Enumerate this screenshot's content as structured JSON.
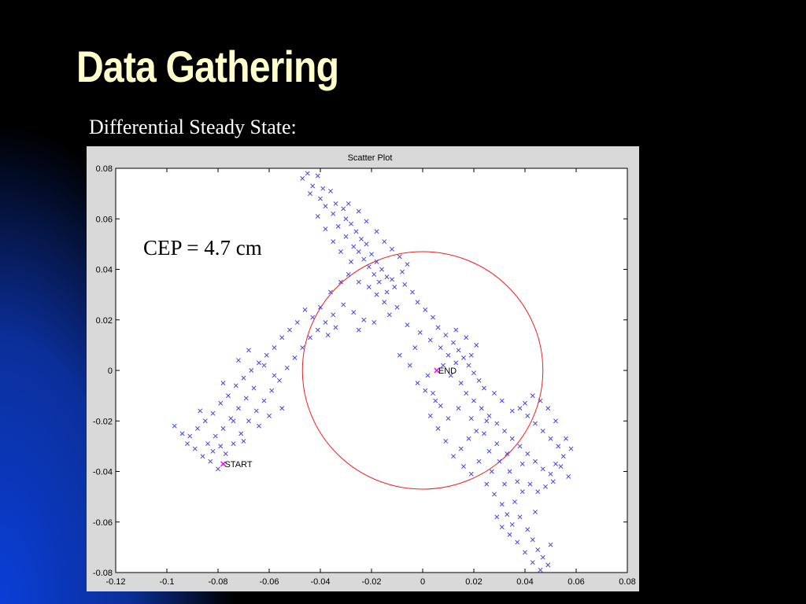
{
  "slide": {
    "title": "Data Gathering",
    "subtitle": "Differential Steady State:",
    "colors": {
      "title": "#ffffcc",
      "background_top": "#000000",
      "background_glow": "#0a3ed8"
    }
  },
  "chart_data": {
    "type": "scatter",
    "title": "Scatter Plot",
    "xlabel": "",
    "ylabel": "",
    "xlim": [
      -0.12,
      0.08
    ],
    "ylim": [
      -0.08,
      0.08
    ],
    "xticks": [
      "-0.12",
      "-0.1",
      "-0.08",
      "-0.06",
      "-0.04",
      "-0.02",
      "0",
      "0.02",
      "0.04",
      "0.06",
      "0.08"
    ],
    "yticks": [
      "0.08",
      "0.06",
      "0.04",
      "0.02",
      "0",
      "-0.02",
      "-0.04",
      "-0.06",
      "-0.08"
    ],
    "marker": "x",
    "marker_color": "#4646e8",
    "circle_color": "#ff1a1a",
    "cep_label": "CEP = 4.7 cm",
    "cep_circle": {
      "center": [
        0,
        0
      ],
      "radius": 0.047
    },
    "annotations": [
      {
        "text": "START",
        "x": -0.078,
        "y": -0.037,
        "marker_color": "#ff00ff"
      },
      {
        "text": "END",
        "x": 0.0055,
        "y": 0.0,
        "marker_color": "#ff00ff"
      }
    ],
    "series": [
      {
        "points": [
          [
            -0.045,
            0.078
          ],
          [
            -0.047,
            0.076
          ],
          [
            -0.043,
            0.073
          ],
          [
            -0.041,
            0.077
          ],
          [
            -0.039,
            0.072
          ],
          [
            -0.044,
            0.07
          ],
          [
            -0.04,
            0.068
          ],
          [
            -0.036,
            0.071
          ],
          [
            -0.034,
            0.066
          ],
          [
            -0.038,
            0.065
          ],
          [
            -0.035,
            0.062
          ],
          [
            -0.031,
            0.064
          ],
          [
            -0.03,
            0.06
          ],
          [
            -0.033,
            0.057
          ],
          [
            -0.028,
            0.058
          ],
          [
            -0.026,
            0.055
          ],
          [
            -0.03,
            0.053
          ],
          [
            -0.024,
            0.052
          ],
          [
            -0.027,
            0.049
          ],
          [
            -0.022,
            0.05
          ],
          [
            -0.025,
            0.047
          ],
          [
            -0.02,
            0.046
          ],
          [
            -0.023,
            0.044
          ],
          [
            -0.018,
            0.043
          ],
          [
            -0.021,
            0.041
          ],
          [
            -0.016,
            0.04
          ],
          [
            -0.019,
            0.038
          ],
          [
            -0.014,
            0.037
          ],
          [
            -0.017,
            0.035
          ],
          [
            -0.012,
            0.036
          ],
          [
            -0.028,
            0.043
          ],
          [
            -0.032,
            0.047
          ],
          [
            -0.035,
            0.051
          ],
          [
            -0.038,
            0.056
          ],
          [
            -0.041,
            0.061
          ],
          [
            -0.029,
            0.066
          ],
          [
            -0.025,
            0.063
          ],
          [
            -0.022,
            0.059
          ],
          [
            -0.018,
            0.055
          ],
          [
            -0.015,
            0.051
          ],
          [
            -0.012,
            0.048
          ],
          [
            -0.009,
            0.045
          ],
          [
            -0.006,
            0.042
          ],
          [
            -0.008,
            0.039
          ],
          [
            -0.011,
            0.033
          ],
          [
            -0.014,
            0.031
          ],
          [
            -0.007,
            0.034
          ],
          [
            -0.004,
            0.031
          ],
          [
            -0.002,
            0.027
          ],
          [
            0.001,
            0.024
          ],
          [
            0.004,
            0.021
          ],
          [
            0.006,
            0.017
          ],
          [
            0.009,
            0.014
          ],
          [
            0.012,
            0.011
          ],
          [
            0.014,
            0.008
          ],
          [
            0.016,
            0.005
          ],
          [
            0.018,
            0.002
          ],
          [
            0.02,
            -0.001
          ],
          [
            0.022,
            -0.004
          ],
          [
            0.024,
            -0.007
          ],
          [
            0.003,
            0.012
          ],
          [
            0.007,
            0.009
          ],
          [
            0.01,
            0.006
          ],
          [
            0.013,
            0.003
          ],
          [
            0.008,
            0.002
          ],
          [
            0.011,
            -0.002
          ],
          [
            0.015,
            -0.005
          ],
          [
            0.017,
            -0.009
          ],
          [
            0.02,
            -0.012
          ],
          [
            0.023,
            -0.015
          ],
          [
            0.026,
            -0.018
          ],
          [
            0.029,
            -0.021
          ],
          [
            0.032,
            -0.024
          ],
          [
            0.035,
            -0.027
          ],
          [
            0.038,
            -0.03
          ],
          [
            0.041,
            -0.033
          ],
          [
            0.044,
            -0.036
          ],
          [
            0.047,
            -0.039
          ],
          [
            0.05,
            -0.041
          ],
          [
            0.052,
            -0.037
          ],
          [
            0.055,
            -0.034
          ],
          [
            0.053,
            -0.03
          ],
          [
            0.05,
            -0.027
          ],
          [
            0.047,
            -0.024
          ],
          [
            0.044,
            -0.021
          ],
          [
            0.041,
            -0.018
          ],
          [
            0.038,
            -0.015
          ],
          [
            0.046,
            -0.012
          ],
          [
            0.049,
            -0.015
          ],
          [
            0.052,
            -0.02
          ],
          [
            0.043,
            -0.01
          ],
          [
            0.04,
            -0.013
          ],
          [
            0.035,
            -0.016
          ],
          [
            0.031,
            -0.012
          ],
          [
            0.028,
            -0.009
          ],
          [
            0.025,
            -0.02
          ],
          [
            0.021,
            -0.024
          ],
          [
            0.018,
            -0.027
          ],
          [
            0.015,
            -0.031
          ],
          [
            0.012,
            -0.034
          ],
          [
            0.009,
            -0.028
          ],
          [
            0.006,
            -0.023
          ],
          [
            0.003,
            -0.018
          ],
          [
            0.005,
            -0.012
          ],
          [
            0.001,
            -0.008
          ],
          [
            -0.002,
            -0.005
          ],
          [
            -0.005,
            0.002
          ],
          [
            -0.009,
            0.006
          ],
          [
            0.027,
            -0.04
          ],
          [
            0.025,
            -0.045
          ],
          [
            0.028,
            -0.049
          ],
          [
            0.031,
            -0.053
          ],
          [
            0.033,
            -0.057
          ],
          [
            0.035,
            -0.061
          ],
          [
            0.038,
            -0.058
          ],
          [
            0.041,
            -0.063
          ],
          [
            0.043,
            -0.067
          ],
          [
            0.045,
            -0.071
          ],
          [
            0.047,
            -0.074
          ],
          [
            0.049,
            -0.077
          ],
          [
            0.046,
            -0.079
          ],
          [
            0.043,
            -0.076
          ],
          [
            0.04,
            -0.072
          ],
          [
            0.037,
            -0.068
          ],
          [
            0.034,
            -0.065
          ],
          [
            0.031,
            -0.062
          ],
          [
            0.029,
            -0.058
          ],
          [
            0.036,
            -0.052
          ],
          [
            0.039,
            -0.048
          ],
          [
            0.05,
            -0.069
          ],
          [
            0.044,
            -0.056
          ],
          [
            0.032,
            -0.045
          ],
          [
            0.022,
            -0.036
          ],
          [
            0.019,
            -0.041
          ],
          [
            0.016,
            -0.038
          ],
          [
            0.026,
            -0.032
          ],
          [
            0.03,
            -0.036
          ],
          [
            0.034,
            -0.04
          ],
          [
            0.037,
            -0.044
          ],
          [
            0.042,
            -0.045
          ],
          [
            -0.04,
            0.025
          ],
          [
            -0.043,
            0.021
          ],
          [
            -0.046,
            0.024
          ],
          [
            -0.049,
            0.019
          ],
          [
            -0.052,
            0.016
          ],
          [
            -0.055,
            0.013
          ],
          [
            -0.058,
            0.009
          ],
          [
            -0.061,
            0.006
          ],
          [
            -0.064,
            0.003
          ],
          [
            -0.067,
            0.0
          ],
          [
            -0.07,
            -0.003
          ],
          [
            -0.073,
            -0.006
          ],
          [
            -0.076,
            -0.01
          ],
          [
            -0.079,
            -0.013
          ],
          [
            -0.082,
            -0.017
          ],
          [
            -0.085,
            -0.02
          ],
          [
            -0.088,
            -0.023
          ],
          [
            -0.091,
            -0.026
          ],
          [
            -0.094,
            -0.025
          ],
          [
            -0.097,
            -0.022
          ],
          [
            -0.092,
            -0.029
          ],
          [
            -0.089,
            -0.031
          ],
          [
            -0.086,
            -0.034
          ],
          [
            -0.083,
            -0.036
          ],
          [
            -0.08,
            -0.039
          ],
          [
            -0.077,
            -0.033
          ],
          [
            -0.074,
            -0.029
          ],
          [
            -0.071,
            -0.025
          ],
          [
            -0.068,
            -0.02
          ],
          [
            -0.065,
            -0.016
          ],
          [
            -0.062,
            -0.012
          ],
          [
            -0.059,
            -0.008
          ],
          [
            -0.056,
            -0.004
          ],
          [
            -0.053,
            0.001
          ],
          [
            -0.05,
            0.005
          ],
          [
            -0.047,
            0.009
          ],
          [
            -0.044,
            0.013
          ],
          [
            -0.041,
            0.016
          ],
          [
            -0.038,
            0.019
          ],
          [
            -0.035,
            0.022
          ],
          [
            -0.066,
            -0.007
          ],
          [
            -0.069,
            -0.011
          ],
          [
            -0.072,
            -0.015
          ],
          [
            -0.075,
            -0.019
          ],
          [
            -0.078,
            -0.023
          ],
          [
            -0.081,
            -0.026
          ],
          [
            -0.084,
            -0.029
          ],
          [
            -0.087,
            -0.016
          ],
          [
            -0.078,
            -0.005
          ],
          [
            -0.072,
            0.004
          ],
          [
            -0.068,
            0.008
          ],
          [
            -0.062,
            0.002
          ],
          [
            -0.058,
            -0.002
          ],
          [
            -0.055,
            -0.015
          ],
          [
            -0.06,
            -0.018
          ],
          [
            -0.064,
            -0.022
          ],
          [
            -0.07,
            -0.028
          ],
          [
            -0.074,
            -0.02
          ],
          [
            -0.079,
            -0.03
          ],
          [
            -0.082,
            -0.032
          ],
          [
            -0.036,
            0.031
          ],
          [
            -0.032,
            0.035
          ],
          [
            -0.029,
            0.038
          ],
          [
            -0.025,
            0.035
          ],
          [
            -0.021,
            0.033
          ],
          [
            -0.018,
            0.03
          ],
          [
            -0.015,
            0.027
          ],
          [
            -0.023,
            0.02
          ],
          [
            -0.027,
            0.023
          ],
          [
            -0.031,
            0.026
          ],
          [
            -0.034,
            0.017
          ],
          [
            -0.037,
            0.014
          ],
          [
            -0.025,
            0.016
          ],
          [
            -0.019,
            0.019
          ],
          [
            -0.013,
            0.022
          ],
          [
            -0.01,
            0.025
          ],
          [
            -0.006,
            0.018
          ],
          [
            -0.003,
            0.009
          ],
          [
            0.002,
            -0.002
          ],
          [
            -0.001,
            0.015
          ],
          [
            0.058,
            -0.031
          ],
          [
            0.056,
            -0.027
          ],
          [
            0.054,
            -0.038
          ],
          [
            0.057,
            -0.042
          ],
          [
            0.051,
            -0.044
          ],
          [
            0.048,
            -0.046
          ],
          [
            0.045,
            -0.048
          ],
          [
            0.039,
            -0.037
          ],
          [
            0.033,
            -0.033
          ],
          [
            0.029,
            -0.029
          ],
          [
            0.024,
            -0.025
          ],
          [
            0.019,
            -0.019
          ],
          [
            0.014,
            -0.015
          ],
          [
            0.01,
            -0.019
          ],
          [
            0.007,
            -0.014
          ],
          [
            0.004,
            -0.009
          ],
          [
            0.019,
            0.006
          ],
          [
            0.021,
            0.01
          ],
          [
            0.017,
            0.013
          ],
          [
            0.013,
            0.016
          ]
        ]
      }
    ]
  }
}
